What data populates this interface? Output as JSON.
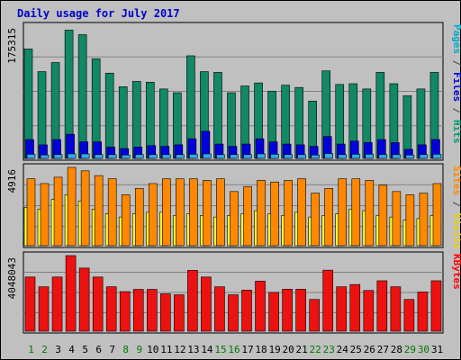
{
  "title": "Daily usage for July 2017",
  "chart_data": [
    {
      "type": "bar",
      "panel": "top",
      "axis_max_label": "175315",
      "ylim": [
        0,
        175315
      ],
      "right_labels": [
        {
          "text": "Pages",
          "color": "#00aacc"
        },
        {
          "text": " / ",
          "color": "#444444"
        },
        {
          "text": "Files",
          "color": "#0000cc"
        },
        {
          "text": " / ",
          "color": "#444444"
        },
        {
          "text": "Hits",
          "color": "#009977"
        }
      ],
      "series": [
        {
          "name": "Hits",
          "color": "#118866",
          "values": [
            145000,
            115000,
            127000,
            170000,
            164000,
            132000,
            113000,
            95000,
            102000,
            101000,
            92000,
            87000,
            136000,
            115000,
            114000,
            87000,
            96000,
            100000,
            89000,
            97000,
            94000,
            76000,
            116000,
            98000,
            99000,
            92000,
            114000,
            99000,
            83000,
            92000,
            114000
          ]
        },
        {
          "name": "Files",
          "color": "#0000dd",
          "values": [
            25000,
            18000,
            25000,
            32000,
            22000,
            22000,
            15000,
            13000,
            15000,
            17000,
            16000,
            18000,
            26000,
            36000,
            19000,
            16000,
            19000,
            26000,
            22000,
            19000,
            18000,
            16000,
            29000,
            19000,
            23000,
            21000,
            25000,
            21000,
            12000,
            18000,
            25000
          ]
        },
        {
          "name": "Pages",
          "color": "#33aaee",
          "values": [
            5500,
            4500,
            5000,
            6000,
            6000,
            5000,
            5000,
            4500,
            5000,
            5000,
            5000,
            5000,
            5500,
            6000,
            5000,
            5000,
            5000,
            6000,
            5500,
            5000,
            5000,
            4500,
            6500,
            5000,
            5500,
            5500,
            5000,
            5000,
            4500,
            5000,
            5500
          ]
        }
      ]
    },
    {
      "type": "bar",
      "panel": "middle",
      "axis_max_label": "4916",
      "ylim": [
        0,
        4916
      ],
      "right_labels": [
        {
          "text": "Sites",
          "color": "#ff8800"
        },
        {
          "text": " / ",
          "color": "#444444"
        },
        {
          "text": "Visits",
          "color": "#eecc00"
        }
      ],
      "series": [
        {
          "name": "Visits",
          "color": "#ffff33",
          "values": [
            2400,
            2300,
            2900,
            3200,
            2800,
            2300,
            2000,
            1800,
            2000,
            2100,
            2100,
            1900,
            2000,
            1900,
            1800,
            1900,
            2000,
            2200,
            2000,
            1900,
            2100,
            1800,
            1900,
            2000,
            2300,
            2200,
            1900,
            1800,
            1600,
            1700,
            1900
          ]
        },
        {
          "name": "Sites",
          "color": "#ff8800",
          "values": [
            4200,
            3900,
            4300,
            4916,
            4700,
            4400,
            4200,
            3200,
            3600,
            3900,
            4200,
            4200,
            4200,
            4100,
            4200,
            3400,
            3700,
            4100,
            4000,
            4100,
            4200,
            3300,
            3600,
            4200,
            4200,
            4100,
            3800,
            3400,
            3200,
            3300,
            3900
          ]
        }
      ]
    },
    {
      "type": "bar",
      "panel": "bottom",
      "axis_max_label": "4048043",
      "ylim": [
        0,
        4048043
      ],
      "right_labels": [
        {
          "text": "KBytes",
          "color": "#ff0000"
        }
      ],
      "series": [
        {
          "name": "KBytes",
          "color": "#ee1111",
          "values": [
            2900000,
            2380000,
            2900000,
            4048043,
            3380000,
            2900000,
            2380000,
            2120000,
            2240000,
            2240000,
            2000000,
            1950000,
            3260000,
            2900000,
            2380000,
            1950000,
            2200000,
            2680000,
            2080000,
            2250000,
            2250000,
            1700000,
            3270000,
            2380000,
            2500000,
            2180000,
            2700000,
            2380000,
            1700000,
            2100000,
            2700000
          ]
        }
      ]
    }
  ],
  "x_labels": [
    {
      "text": "1",
      "color": "#007700"
    },
    {
      "text": "2",
      "color": "#007700"
    },
    {
      "text": "3",
      "color": "#000000"
    },
    {
      "text": "4",
      "color": "#000000"
    },
    {
      "text": "5",
      "color": "#000000"
    },
    {
      "text": "6",
      "color": "#000000"
    },
    {
      "text": "7",
      "color": "#000000"
    },
    {
      "text": "8",
      "color": "#007700"
    },
    {
      "text": "9",
      "color": "#007700"
    },
    {
      "text": "10",
      "color": "#000000"
    },
    {
      "text": "11",
      "color": "#000000"
    },
    {
      "text": "12",
      "color": "#000000"
    },
    {
      "text": "13",
      "color": "#000000"
    },
    {
      "text": "14",
      "color": "#000000"
    },
    {
      "text": "15",
      "color": "#007700"
    },
    {
      "text": "16",
      "color": "#007700"
    },
    {
      "text": "17",
      "color": "#000000"
    },
    {
      "text": "18",
      "color": "#000000"
    },
    {
      "text": "19",
      "color": "#000000"
    },
    {
      "text": "20",
      "color": "#000000"
    },
    {
      "text": "21",
      "color": "#000000"
    },
    {
      "text": "22",
      "color": "#007700"
    },
    {
      "text": "23",
      "color": "#007700"
    },
    {
      "text": "24",
      "color": "#000000"
    },
    {
      "text": "25",
      "color": "#000000"
    },
    {
      "text": "26",
      "color": "#000000"
    },
    {
      "text": "27",
      "color": "#000000"
    },
    {
      "text": "28",
      "color": "#000000"
    },
    {
      "text": "29",
      "color": "#007700"
    },
    {
      "text": "30",
      "color": "#007700"
    },
    {
      "text": "31",
      "color": "#000000"
    }
  ]
}
